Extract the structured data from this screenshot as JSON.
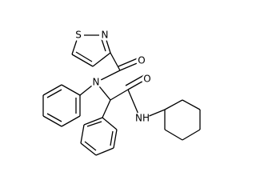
{
  "atoms": [
    "S",
    "N",
    "O",
    "N",
    "O",
    "NH"
  ]
}
